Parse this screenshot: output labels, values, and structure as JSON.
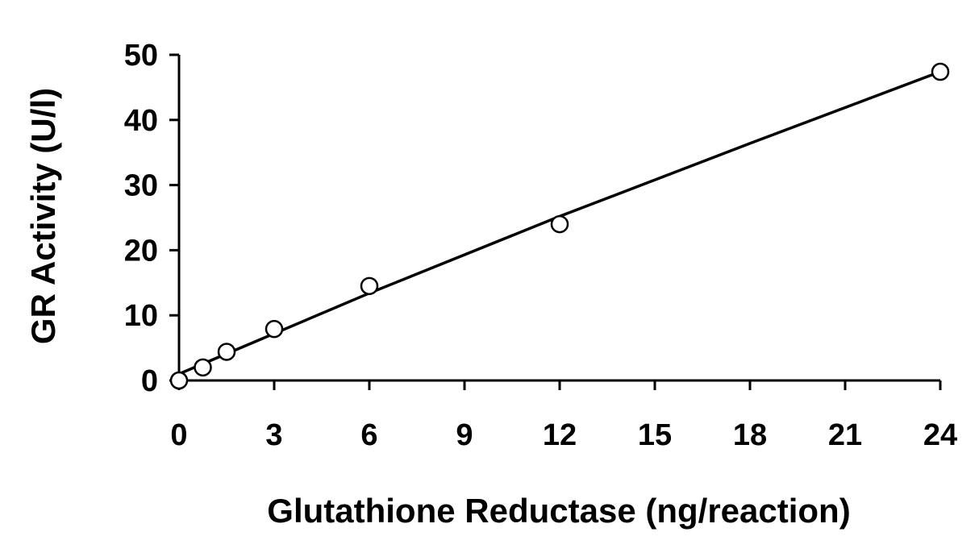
{
  "chart_data": {
    "type": "scatter",
    "xlabel": "Glutathione Reductase (ng/reaction)",
    "ylabel": "GR Activity (U/l)",
    "xlim": [
      0,
      24
    ],
    "ylim": [
      0,
      50
    ],
    "xticks": [
      "0",
      "3",
      "6",
      "9",
      "12",
      "15",
      "18",
      "21",
      "24"
    ],
    "yticks": [
      "0",
      "10",
      "20",
      "30",
      "40",
      "50"
    ],
    "grid": false,
    "legend": "none",
    "series": [
      {
        "marker": "open-circle",
        "x": [
          0,
          0.75,
          1.5,
          3,
          6,
          12,
          24
        ],
        "y": [
          0,
          2.0,
          4.4,
          7.9,
          14.5,
          24.0,
          47.4
        ]
      }
    ],
    "fit_line": {
      "style": "curve",
      "x": [
        0,
        6,
        12,
        18,
        24
      ],
      "y": [
        1.0,
        13.4,
        25.2,
        36.4,
        47.4
      ]
    },
    "colors": {
      "axis": "#000000",
      "marker_stroke": "#000000",
      "marker_fill": "#ffffff",
      "line": "#000000"
    }
  }
}
